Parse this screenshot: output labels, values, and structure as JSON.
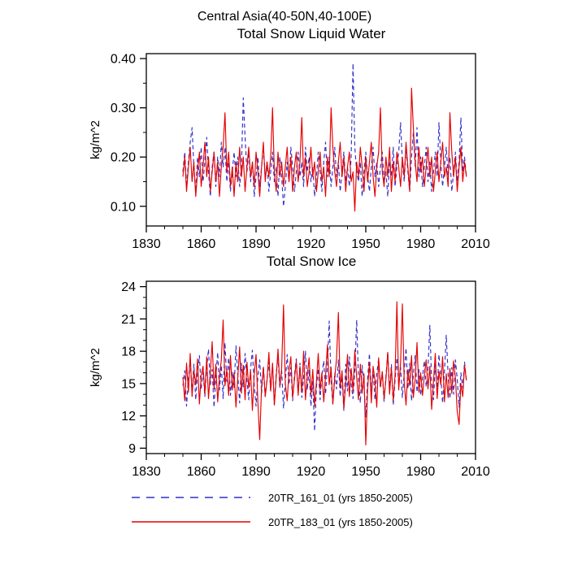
{
  "page": {
    "title": "Central Asia(40-50N,40-100E)"
  },
  "legend": {
    "items": [
      {
        "label": "20TR_161_01 (yrs 1850-2005)",
        "color": "#3030c8",
        "style": "dashed"
      },
      {
        "label": "20TR_183_01 (yrs 1850-2005)",
        "color": "#e60000",
        "style": "solid"
      }
    ]
  },
  "chart_data": [
    {
      "type": "line",
      "title": "Total Snow Liquid Water",
      "ylabel": "kg/m^2",
      "xlim": [
        1830,
        2010
      ],
      "ylim": [
        0.06,
        0.41
      ],
      "xtick_values": [
        1830,
        1860,
        1890,
        1920,
        1950,
        1980,
        2010
      ],
      "xtick_labels": [
        "1830",
        "1860",
        "1890",
        "1920",
        "1950",
        "1980",
        "2010"
      ],
      "x_minor_step": 10,
      "ytick_values": [
        0.1,
        0.2,
        0.3,
        0.4
      ],
      "ytick_labels": [
        "0.10",
        "0.20",
        "0.30",
        "0.40"
      ],
      "y_minor_step": 0.05,
      "x_start": 1850,
      "x_step": 1,
      "grid": false,
      "legend_position": "below",
      "series": [
        {
          "name": "20TR_161_01",
          "color": "#3030c8",
          "style": "dashed",
          "values": [
            0.17,
            0.21,
            0.14,
            0.19,
            0.23,
            0.26,
            0.18,
            0.13,
            0.2,
            0.16,
            0.22,
            0.15,
            0.19,
            0.24,
            0.17,
            0.12,
            0.18,
            0.21,
            0.14,
            0.2,
            0.16,
            0.23,
            0.18,
            0.22,
            0.15,
            0.19,
            0.13,
            0.17,
            0.21,
            0.16,
            0.2,
            0.14,
            0.18,
            0.32,
            0.24,
            0.17,
            0.21,
            0.15,
            0.19,
            0.12,
            0.16,
            0.2,
            0.14,
            0.18,
            0.22,
            0.16,
            0.19,
            0.13,
            0.17,
            0.21,
            0.15,
            0.18,
            0.12,
            0.2,
            0.16,
            0.1,
            0.14,
            0.19,
            0.15,
            0.22,
            0.18,
            0.13,
            0.17,
            0.21,
            0.16,
            0.19,
            0.14,
            0.22,
            0.17,
            0.2,
            0.15,
            0.18,
            0.12,
            0.16,
            0.21,
            0.17,
            0.13,
            0.19,
            0.23,
            0.16,
            0.2,
            0.14,
            0.18,
            0.22,
            0.16,
            0.19,
            0.13,
            0.17,
            0.21,
            0.15,
            0.18,
            0.14,
            0.2,
            0.39,
            0.22,
            0.17,
            0.15,
            0.19,
            0.12,
            0.17,
            0.21,
            0.16,
            0.13,
            0.18,
            0.22,
            0.16,
            0.19,
            0.14,
            0.18,
            0.21,
            0.15,
            0.17,
            0.12,
            0.19,
            0.16,
            0.22,
            0.14,
            0.18,
            0.21,
            0.27,
            0.19,
            0.15,
            0.22,
            0.17,
            0.13,
            0.2,
            0.25,
            0.18,
            0.26,
            0.16,
            0.2,
            0.14,
            0.18,
            0.22,
            0.15,
            0.19,
            0.13,
            0.17,
            0.21,
            0.16,
            0.27,
            0.19,
            0.14,
            0.18,
            0.22,
            0.16,
            0.2,
            0.13,
            0.17,
            0.21,
            0.15,
            0.19,
            0.28,
            0.17,
            0.2,
            0.16
          ]
        },
        {
          "name": "20TR_183_01",
          "color": "#e60000",
          "style": "solid",
          "values": [
            0.16,
            0.2,
            0.13,
            0.18,
            0.22,
            0.15,
            0.19,
            0.12,
            0.17,
            0.21,
            0.14,
            0.18,
            0.23,
            0.16,
            0.2,
            0.13,
            0.17,
            0.21,
            0.15,
            0.19,
            0.12,
            0.18,
            0.22,
            0.29,
            0.17,
            0.21,
            0.14,
            0.18,
            0.12,
            0.19,
            0.15,
            0.22,
            0.16,
            0.2,
            0.13,
            0.18,
            0.22,
            0.16,
            0.19,
            0.14,
            0.21,
            0.17,
            0.12,
            0.18,
            0.23,
            0.15,
            0.19,
            0.16,
            0.2,
            0.3,
            0.17,
            0.13,
            0.21,
            0.16,
            0.19,
            0.14,
            0.18,
            0.22,
            0.15,
            0.2,
            0.13,
            0.18,
            0.21,
            0.15,
            0.19,
            0.28,
            0.16,
            0.2,
            0.14,
            0.17,
            0.22,
            0.16,
            0.19,
            0.13,
            0.17,
            0.21,
            0.15,
            0.18,
            0.12,
            0.2,
            0.16,
            0.3,
            0.22,
            0.17,
            0.14,
            0.19,
            0.23,
            0.16,
            0.2,
            0.13,
            0.18,
            0.21,
            0.15,
            0.17,
            0.09,
            0.19,
            0.16,
            0.22,
            0.18,
            0.13,
            0.2,
            0.15,
            0.19,
            0.23,
            0.16,
            0.12,
            0.18,
            0.21,
            0.3,
            0.17,
            0.14,
            0.2,
            0.16,
            0.22,
            0.13,
            0.19,
            0.15,
            0.21,
            0.18,
            0.14,
            0.2,
            0.16,
            0.23,
            0.18,
            0.13,
            0.34,
            0.26,
            0.19,
            0.15,
            0.22,
            0.17,
            0.2,
            0.14,
            0.18,
            0.22,
            0.16,
            0.2,
            0.13,
            0.17,
            0.21,
            0.15,
            0.19,
            0.23,
            0.16,
            0.18,
            0.14,
            0.29,
            0.21,
            0.16,
            0.2,
            0.13,
            0.18,
            0.22,
            0.15,
            0.19,
            0.16
          ]
        }
      ]
    },
    {
      "type": "line",
      "title": "Total Snow Ice",
      "ylabel": "kg/m^2",
      "xlim": [
        1830,
        2010
      ],
      "ylim": [
        8.5,
        24.5
      ],
      "xtick_values": [
        1830,
        1860,
        1890,
        1920,
        1950,
        1980,
        2010
      ],
      "xtick_labels": [
        "1830",
        "1860",
        "1890",
        "1920",
        "1950",
        "1980",
        "2010"
      ],
      "x_minor_step": 10,
      "ytick_values": [
        9,
        12,
        15,
        18,
        21,
        24
      ],
      "ytick_labels": [
        "9",
        "12",
        "15",
        "18",
        "21",
        "24"
      ],
      "y_minor_step": 1,
      "x_start": 1850,
      "x_step": 1,
      "grid": false,
      "legend_position": "below",
      "series": [
        {
          "name": "20TR_161_01",
          "color": "#3030c8",
          "style": "dashed",
          "values": [
            14.8,
            16.2,
            12.9,
            15.5,
            17.1,
            14.2,
            16.8,
            13.5,
            15.9,
            17.6,
            14.5,
            16.1,
            13.8,
            16.5,
            18.2,
            14.9,
            16.3,
            12.8,
            15.6,
            17.9,
            14.4,
            16.7,
            13.6,
            18.8,
            15.2,
            17.4,
            13.9,
            16.1,
            14.6,
            18.5,
            15.8,
            13.2,
            16.9,
            14.7,
            17.8,
            15.3,
            13.5,
            16.4,
            18.1,
            14.8,
            12.9,
            15.7,
            17.2,
            14.1,
            16.6,
            13.8,
            15.4,
            17.0,
            14.3,
            16.8,
            13.1,
            15.9,
            17.5,
            14.6,
            16.2,
            12.7,
            15.1,
            17.7,
            14.9,
            16.5,
            13.4,
            15.8,
            17.3,
            14.2,
            16.9,
            13.7,
            15.5,
            18.0,
            14.4,
            16.3,
            12.9,
            15.2,
            10.6,
            14.7,
            16.4,
            13.5,
            15.8,
            17.1,
            14.0,
            16.6,
            20.8,
            15.3,
            13.1,
            16.0,
            14.5,
            17.2,
            13.8,
            15.6,
            12.5,
            16.8,
            14.3,
            17.5,
            15.0,
            13.6,
            16.2,
            20.9,
            15.4,
            13.2,
            16.7,
            14.8,
            11.9,
            15.5,
            17.8,
            14.1,
            16.4,
            13.5,
            15.9,
            17.3,
            14.6,
            16.1,
            13.3,
            15.7,
            17.9,
            14.4,
            16.8,
            13.0,
            15.3,
            17.4,
            14.9,
            16.5,
            13.7,
            16.0,
            18.3,
            14.5,
            16.9,
            13.4,
            15.8,
            17.6,
            14.2,
            16.3,
            13.9,
            15.6,
            17.1,
            14.7,
            16.4,
            20.4,
            15.1,
            13.5,
            16.8,
            14.3,
            17.7,
            15.5,
            13.2,
            16.1,
            19.5,
            15.8,
            13.6,
            16.5,
            14.0,
            17.2,
            15.4,
            12.8,
            16.0,
            14.6,
            17.0,
            15.2
          ]
        },
        {
          "name": "20TR_183_01",
          "color": "#e60000",
          "style": "solid",
          "values": [
            15.6,
            13.4,
            16.9,
            14.2,
            17.8,
            13.8,
            16.2,
            14.9,
            17.3,
            13.1,
            15.8,
            16.6,
            14.0,
            17.5,
            13.6,
            16.1,
            18.9,
            14.5,
            16.8,
            13.3,
            15.7,
            17.2,
            20.9,
            14.8,
            16.3,
            13.9,
            17.6,
            14.4,
            16.0,
            12.8,
            15.5,
            18.4,
            14.1,
            16.7,
            13.5,
            17.0,
            14.6,
            16.2,
            12.5,
            15.9,
            17.7,
            13.2,
            9.8,
            14.7,
            16.5,
            13.8,
            15.3,
            17.9,
            14.3,
            16.9,
            13.0,
            15.6,
            18.2,
            14.8,
            16.4,
            22.3,
            15.0,
            13.4,
            16.1,
            17.5,
            13.7,
            15.4,
            17.1,
            13.9,
            16.6,
            14.2,
            18.0,
            13.5,
            15.8,
            17.4,
            14.0,
            16.3,
            12.9,
            15.2,
            17.8,
            14.4,
            16.0,
            13.3,
            15.7,
            18.6,
            14.9,
            16.5,
            13.1,
            15.5,
            17.3,
            21.6,
            14.6,
            16.2,
            12.7,
            15.0,
            17.7,
            13.8,
            16.4,
            14.3,
            18.1,
            15.6,
            13.5,
            16.8,
            14.1,
            15.9,
            9.3,
            14.5,
            17.0,
            13.2,
            16.6,
            15.3,
            12.8,
            17.4,
            14.7,
            16.1,
            13.6,
            15.4,
            17.9,
            14.0,
            16.5,
            13.4,
            15.8,
            22.6,
            14.4,
            16.9,
            22.4,
            15.1,
            13.0,
            16.3,
            14.8,
            17.6,
            13.7,
            15.5,
            18.8,
            14.2,
            16.0,
            13.9,
            15.7,
            17.2,
            14.5,
            16.6,
            12.6,
            15.2,
            17.8,
            13.6,
            16.1,
            14.9,
            17.5,
            13.3,
            15.9,
            13.7,
            16.4,
            14.1,
            17.1,
            15.5,
            12.4,
            11.2,
            15.0,
            13.8,
            16.7,
            15.3
          ]
        }
      ]
    }
  ]
}
